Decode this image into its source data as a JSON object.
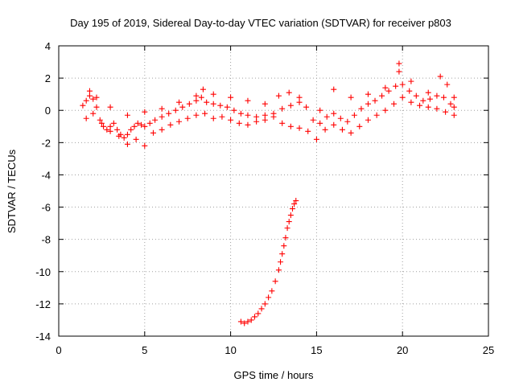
{
  "chart_data": {
    "type": "scatter",
    "title": "Day 195 of 2019, Sidereal Day-to-day VTEC variation (SDTVAR) for receiver p803",
    "xlabel": "GPS time / hours",
    "ylabel": "SDTVAR / TECUs",
    "xlim": [
      0,
      25
    ],
    "ylim": [
      -14,
      4
    ],
    "xticks": [
      0,
      5,
      10,
      15,
      20,
      25
    ],
    "yticks": [
      -14,
      -12,
      -10,
      -8,
      -6,
      -4,
      -2,
      0,
      2,
      4
    ],
    "grid": true,
    "marker": "plus",
    "color": "#ff0000",
    "series": [
      {
        "name": "main_band",
        "x": [
          1.4,
          1.6,
          1.8,
          2.0,
          2.2,
          2.4,
          2.6,
          2.8,
          3.0,
          3.2,
          3.4,
          3.6,
          3.8,
          4.0,
          4.2,
          4.4,
          4.6,
          4.8,
          5.0,
          5.3,
          5.6,
          6.0,
          6.4,
          6.8,
          7.2,
          7.6,
          8.0,
          8.3,
          8.6,
          9.0,
          9.4,
          9.8,
          10.2,
          10.6,
          11.0,
          11.5,
          12.0,
          12.5,
          13.0,
          13.5,
          14.0,
          14.4,
          14.8,
          15.2,
          15.6,
          16.0,
          16.4,
          16.8,
          17.2,
          17.6,
          18.0,
          18.4,
          18.8,
          19.2,
          19.6,
          19.8,
          20.0,
          20.4,
          20.8,
          21.2,
          21.6,
          22.0,
          22.4,
          22.8,
          23.0
        ],
        "y": [
          0.3,
          0.6,
          0.9,
          0.7,
          0.2,
          -0.6,
          -1.0,
          -1.2,
          -1.0,
          -0.8,
          -1.2,
          -1.5,
          -1.7,
          -1.5,
          -1.2,
          -1.0,
          -0.8,
          -0.9,
          -1.0,
          -0.8,
          -0.6,
          -0.4,
          -0.2,
          0.0,
          0.2,
          0.4,
          0.6,
          0.8,
          0.5,
          0.4,
          0.3,
          0.2,
          0.0,
          -0.2,
          -0.3,
          -0.4,
          -0.3,
          -0.2,
          0.1,
          0.3,
          0.5,
          0.2,
          -0.6,
          -0.8,
          -0.4,
          -0.2,
          -0.5,
          -0.7,
          -0.3,
          0.1,
          0.4,
          0.6,
          0.9,
          1.2,
          1.5,
          2.4,
          1.6,
          1.2,
          0.9,
          0.6,
          0.7,
          0.9,
          0.8,
          0.4,
          0.2
        ]
      },
      {
        "name": "lower_band",
        "x": [
          1.6,
          2.0,
          2.5,
          3.0,
          3.5,
          4.0,
          4.5,
          5.0,
          5.5,
          6.0,
          6.5,
          7.0,
          7.5,
          8.0,
          8.5,
          9.0,
          9.5,
          10.0,
          10.5,
          11.0,
          11.5,
          12.0,
          12.5,
          13.0,
          13.5,
          14.0,
          14.5,
          15.0,
          15.5,
          16.0,
          16.5,
          17.0,
          17.5,
          18.0,
          18.5,
          19.0,
          19.5,
          20.0,
          20.5,
          21.0,
          21.5,
          22.0,
          22.5,
          23.0
        ],
        "y": [
          -0.5,
          -0.2,
          -0.8,
          -1.3,
          -1.6,
          -2.1,
          -1.8,
          -2.2,
          -1.4,
          -1.2,
          -0.9,
          -0.7,
          -0.5,
          -0.3,
          -0.2,
          -0.5,
          -0.4,
          -0.6,
          -0.8,
          -0.9,
          -0.7,
          -0.6,
          -0.4,
          -0.8,
          -1.0,
          -1.1,
          -1.3,
          -1.8,
          -1.2,
          -0.9,
          -1.2,
          -1.4,
          -1.0,
          -0.6,
          -0.3,
          0.0,
          0.4,
          0.8,
          0.5,
          0.3,
          0.2,
          0.1,
          -0.1,
          -0.3
        ]
      },
      {
        "name": "upper_band",
        "x": [
          1.8,
          2.2,
          3.0,
          4.0,
          5.0,
          6.0,
          7.0,
          8.0,
          8.4,
          9.0,
          10.0,
          11.0,
          12.0,
          12.8,
          13.4,
          14.0,
          15.2,
          16.0,
          17.0,
          18.0,
          19.0,
          19.8,
          20.5,
          21.5,
          22.2,
          22.6,
          23.0
        ],
        "y": [
          1.2,
          0.8,
          0.2,
          -0.3,
          -0.1,
          0.1,
          0.5,
          0.9,
          1.3,
          1.0,
          0.8,
          0.6,
          0.4,
          0.9,
          1.1,
          0.8,
          0.0,
          1.3,
          0.8,
          1.0,
          1.4,
          2.9,
          1.8,
          1.1,
          2.1,
          1.6,
          0.8
        ]
      },
      {
        "name": "descending_arc",
        "x": [
          10.6,
          10.8,
          11.0,
          11.2,
          11.4,
          11.6,
          11.8,
          12.0,
          12.2,
          12.4,
          12.6,
          12.8,
          12.9,
          13.0,
          13.1,
          13.2,
          13.3,
          13.4,
          13.5,
          13.6,
          13.7,
          13.8
        ],
        "y": [
          -13.1,
          -13.2,
          -13.1,
          -13.0,
          -12.8,
          -12.6,
          -12.3,
          -12.0,
          -11.6,
          -11.2,
          -10.6,
          -9.9,
          -9.4,
          -8.9,
          -8.4,
          -7.9,
          -7.3,
          -6.9,
          -6.5,
          -6.1,
          -5.8,
          -5.6
        ]
      }
    ]
  }
}
